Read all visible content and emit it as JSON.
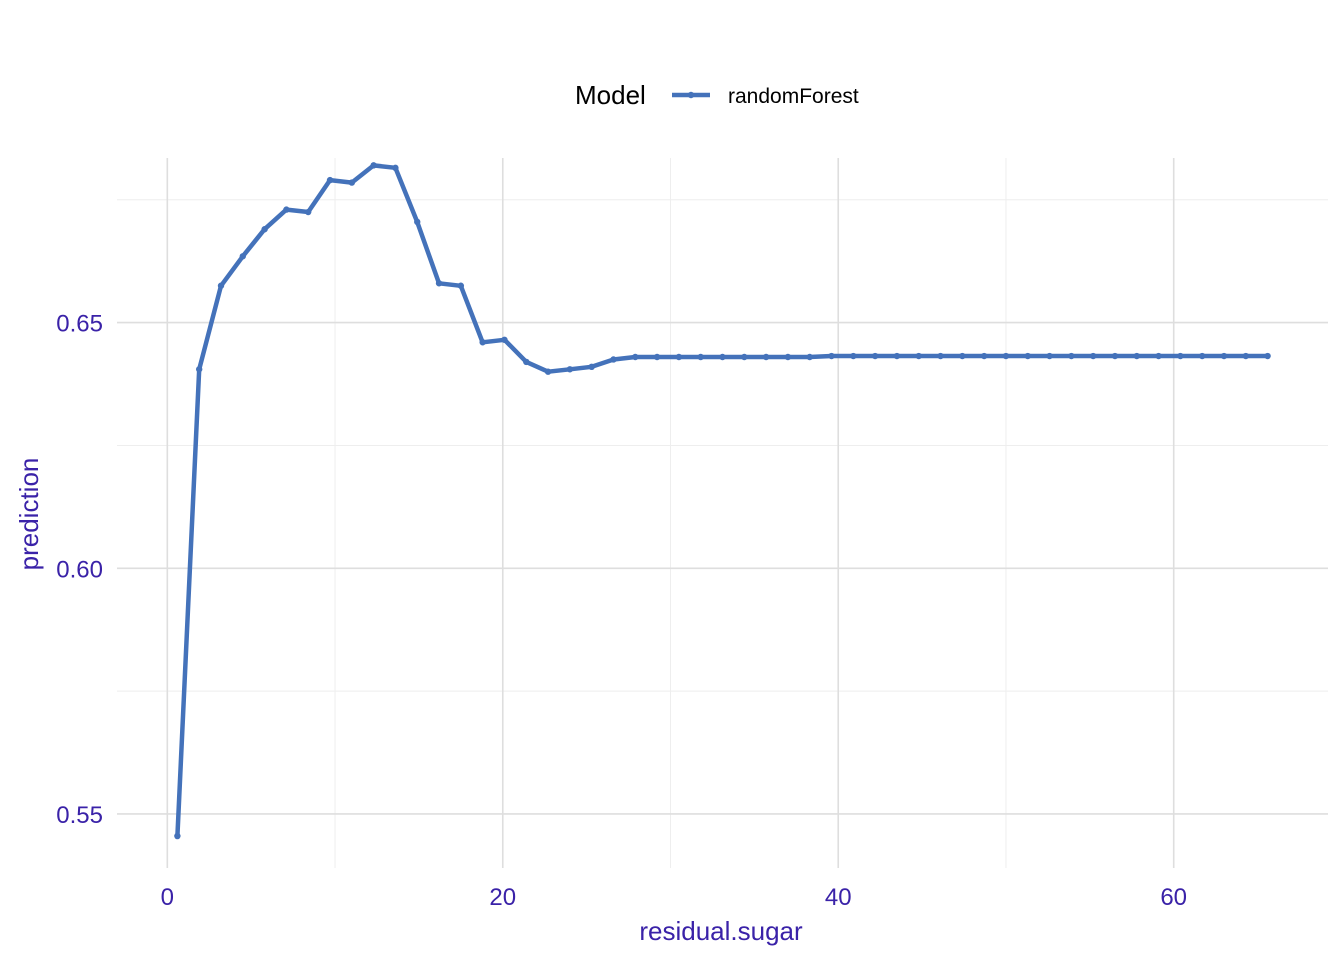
{
  "colors": {
    "series": "#4472ba",
    "axis_text": "#3a22a8",
    "grid": "#dedede"
  },
  "legend": {
    "title": "Model",
    "placement": "top"
  },
  "chart_data": {
    "type": "line",
    "xlabel": "residual.sugar",
    "ylabel": "prediction",
    "xlim": [
      -3.0,
      69.2
    ],
    "ylim": [
      0.539,
      0.6835
    ],
    "x_ticks": [
      0,
      20,
      40,
      60
    ],
    "x_tick_labels": [
      "0",
      "20",
      "40",
      "60"
    ],
    "y_ticks": [
      0.55,
      0.6,
      0.65
    ],
    "y_tick_labels": [
      "0.55",
      "0.60",
      "0.65"
    ],
    "grid": true,
    "series": [
      {
        "name": "randomForest",
        "x": [
          0.6,
          1.9,
          3.2,
          4.5,
          5.8,
          7.1,
          8.4,
          9.7,
          11.0,
          12.3,
          13.6,
          14.9,
          16.2,
          17.5,
          18.8,
          20.1,
          21.4,
          22.7,
          24.0,
          25.3,
          26.6,
          27.9,
          29.2,
          30.5,
          31.8,
          33.1,
          34.4,
          35.7,
          37.0,
          38.3,
          39.6,
          40.9,
          42.2,
          43.5,
          44.8,
          46.1,
          47.4,
          48.7,
          50.0,
          51.3,
          52.6,
          53.9,
          55.2,
          56.5,
          57.8,
          59.1,
          60.4,
          61.7,
          63.0,
          64.3,
          65.6
        ],
        "values": [
          0.5455,
          0.6405,
          0.6575,
          0.6635,
          0.669,
          0.673,
          0.6725,
          0.679,
          0.6785,
          0.682,
          0.6815,
          0.6705,
          0.658,
          0.6575,
          0.646,
          0.6465,
          0.642,
          0.64,
          0.6405,
          0.641,
          0.6425,
          0.643,
          0.643,
          0.643,
          0.643,
          0.643,
          0.643,
          0.643,
          0.643,
          0.643,
          0.6432,
          0.6432,
          0.6432,
          0.6432,
          0.6432,
          0.6432,
          0.6432,
          0.6432,
          0.6432,
          0.6432,
          0.6432,
          0.6432,
          0.6432,
          0.6432,
          0.6432,
          0.6432,
          0.6432,
          0.6432,
          0.6432,
          0.6432,
          0.6432
        ]
      }
    ]
  }
}
